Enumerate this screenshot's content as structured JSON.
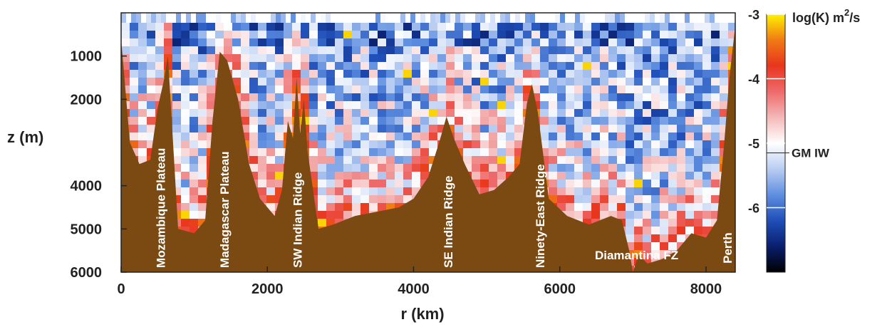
{
  "chart_data": {
    "type": "heatmap",
    "title": "",
    "xlabel": "r  (km)",
    "ylabel": "z  (m)",
    "xlim": [
      0,
      8400
    ],
    "ylim": [
      6000,
      0
    ],
    "y_inverted": true,
    "x_ticks": [
      {
        "value": 0,
        "label": "0"
      },
      {
        "value": 2000,
        "label": "2000"
      },
      {
        "value": 4000,
        "label": "4000"
      },
      {
        "value": 6000,
        "label": "6000"
      },
      {
        "value": 8000,
        "label": "8000"
      }
    ],
    "y_ticks": [
      {
        "value": 1000,
        "label": "1000"
      },
      {
        "value": 2000,
        "label": "2000"
      },
      {
        "value": 4000,
        "label": "4000"
      },
      {
        "value": 5000,
        "label": "5000"
      },
      {
        "value": 6000,
        "label": "6000"
      }
    ],
    "colorbar": {
      "label_main": "log(K)  m",
      "label_sup": "2",
      "label_tail": "/s",
      "range": [
        -7,
        -3
      ],
      "ticks": [
        {
          "value": -3,
          "label": "-3"
        },
        {
          "value": -4,
          "label": "-4"
        },
        {
          "value": -5,
          "label": "-5"
        },
        {
          "value": -6,
          "label": "-6"
        }
      ],
      "reference": {
        "value": -5.15,
        "label": "GM IW"
      },
      "colors": [
        "#000000",
        "#0a1f6e",
        "#1f4fb8",
        "#5f8fe0",
        "#b9cdf2",
        "#ffffff",
        "#f4b8b8",
        "#ee6b6b",
        "#e8351e",
        "#f07a14",
        "#fff200"
      ]
    },
    "bathymetry_color": "#7a4a12",
    "bathymetry": [
      {
        "r": 0,
        "z": 600
      },
      {
        "r": 120,
        "z": 3000
      },
      {
        "r": 250,
        "z": 3500
      },
      {
        "r": 400,
        "z": 3400
      },
      {
        "r": 500,
        "z": 2200
      },
      {
        "r": 580,
        "z": 1600
      },
      {
        "r": 640,
        "z": 1000
      },
      {
        "r": 700,
        "z": 2700
      },
      {
        "r": 780,
        "z": 5000
      },
      {
        "r": 1000,
        "z": 5100
      },
      {
        "r": 1150,
        "z": 4800
      },
      {
        "r": 1250,
        "z": 2500
      },
      {
        "r": 1350,
        "z": 900
      },
      {
        "r": 1450,
        "z": 1100
      },
      {
        "r": 1600,
        "z": 2000
      },
      {
        "r": 1750,
        "z": 3500
      },
      {
        "r": 1900,
        "z": 4300
      },
      {
        "r": 2100,
        "z": 4700
      },
      {
        "r": 2200,
        "z": 4100
      },
      {
        "r": 2280,
        "z": 2500
      },
      {
        "r": 2350,
        "z": 2900
      },
      {
        "r": 2400,
        "z": 1500
      },
      {
        "r": 2450,
        "z": 2800
      },
      {
        "r": 2500,
        "z": 2000
      },
      {
        "r": 2550,
        "z": 3200
      },
      {
        "r": 2700,
        "z": 5000
      },
      {
        "r": 2900,
        "z": 4900
      },
      {
        "r": 3200,
        "z": 4700
      },
      {
        "r": 3500,
        "z": 4600
      },
      {
        "r": 3800,
        "z": 4500
      },
      {
        "r": 4000,
        "z": 4300
      },
      {
        "r": 4200,
        "z": 3800
      },
      {
        "r": 4350,
        "z": 3000
      },
      {
        "r": 4450,
        "z": 2400
      },
      {
        "r": 4550,
        "z": 2900
      },
      {
        "r": 4700,
        "z": 3500
      },
      {
        "r": 4900,
        "z": 4200
      },
      {
        "r": 5100,
        "z": 4100
      },
      {
        "r": 5300,
        "z": 3800
      },
      {
        "r": 5450,
        "z": 3500
      },
      {
        "r": 5550,
        "z": 2100
      },
      {
        "r": 5620,
        "z": 1650
      },
      {
        "r": 5700,
        "z": 2300
      },
      {
        "r": 5850,
        "z": 4300
      },
      {
        "r": 6100,
        "z": 4700
      },
      {
        "r": 6400,
        "z": 4900
      },
      {
        "r": 6700,
        "z": 4700
      },
      {
        "r": 6850,
        "z": 4800
      },
      {
        "r": 6950,
        "z": 5500
      },
      {
        "r": 7000,
        "z": 6000
      },
      {
        "r": 7080,
        "z": 5600
      },
      {
        "r": 7200,
        "z": 5800
      },
      {
        "r": 7400,
        "z": 5700
      },
      {
        "r": 7600,
        "z": 5500
      },
      {
        "r": 7800,
        "z": 5100
      },
      {
        "r": 8000,
        "z": 5200
      },
      {
        "r": 8150,
        "z": 4800
      },
      {
        "r": 8250,
        "z": 3000
      },
      {
        "r": 8320,
        "z": 1500
      },
      {
        "r": 8400,
        "z": 300
      }
    ],
    "annotations": [
      {
        "text": "Mozambique Plateau",
        "r": 600,
        "z": 5900,
        "rotation": -90
      },
      {
        "text": "Madagascar Plateau",
        "r": 1470,
        "z": 5900,
        "rotation": -90
      },
      {
        "text": "SW Indian Ridge",
        "r": 2470,
        "z": 5900,
        "rotation": -90
      },
      {
        "text": "SE Indian Ridge",
        "r": 4530,
        "z": 5900,
        "rotation": -90
      },
      {
        "text": "Ninety-East Ridge",
        "r": 5790,
        "z": 5900,
        "rotation": -90
      },
      {
        "text": "Diamantina FZ",
        "r": 6480,
        "z": 5700,
        "rotation": 0
      },
      {
        "text": "Perth",
        "r": 8350,
        "z": 5800,
        "rotation": -90
      }
    ],
    "grid": false,
    "legend": "colorbar-right"
  }
}
